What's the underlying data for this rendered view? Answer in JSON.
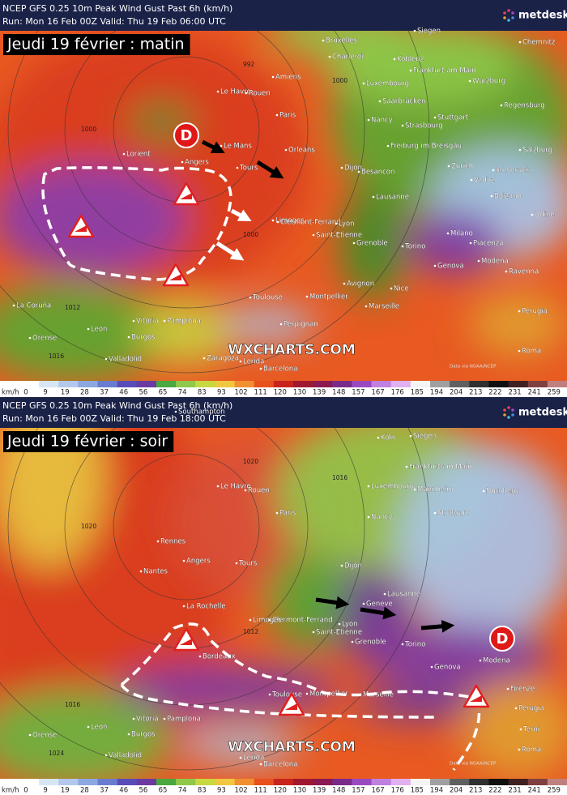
{
  "panels": [
    {
      "header": {
        "line1": "NCEP GFS 0.25 10m Peak Wind Gust Past 6h (km/h)",
        "line2": "Run: Mon 16 Feb 00Z Valid: Thu 19 Feb 06:00 UTC"
      },
      "logo": "metdesk",
      "title": "Jeudi 19 février : matin",
      "watermark": "WXCHARTS.COM",
      "low_label": "D",
      "credit": "Data via NOAA/NCEP",
      "isobars": [
        "1000",
        "1000",
        "1000",
        "1012",
        "1016",
        "992"
      ],
      "cities": [
        "Bruxelles",
        "Charleroi",
        "Siegen",
        "Koblenz",
        "Frankfurt am Main",
        "Würzburg",
        "Chemnitz",
        "Amiens",
        "Luxembourg",
        "Le Havre",
        "Rouen",
        "Saarbrücken",
        "Regensburg",
        "Paris",
        "Nancy",
        "Strasbourg",
        "Stuttgart",
        "Le Mans",
        "Orleans",
        "Freiburg im Breisgau",
        "Salzburg",
        "Angers",
        "Tours",
        "Dijon",
        "Besancon",
        "Zurich",
        "Innsbruck",
        "Lorient",
        "Vaduz",
        "Lausanne",
        "Bolzano",
        "Limoges",
        "Clermont-Ferrand",
        "Lyon",
        "Udine",
        "Saint-Etienne",
        "Grenoble",
        "Milano",
        "Piacenza",
        "Torino",
        "Modena",
        "Ravenna",
        "Genova",
        "Avignon",
        "Nice",
        "Toulouse",
        "Montpellier",
        "Marseille",
        "Perugia",
        "Vitoria",
        "Pamplona",
        "La Coruña",
        "Leon",
        "Burgos",
        "Orense",
        "Perpignan",
        "Valladolid",
        "Zaragoza",
        "Lerida",
        "Barcelona",
        "Roma"
      ]
    },
    {
      "header": {
        "line1": "NCEP GFS 0.25 10m Peak Wind Gust Past 6h (km/h)",
        "line2": "Run: Mon 16 Feb 00Z Valid: Thu 19 Feb 18:00 UTC"
      },
      "logo": "metdesk",
      "title": "Jeudi 19 février : soir",
      "watermark": "WXCHARTS.COM",
      "low_label": "D",
      "credit": "Data via NOAA/NCEP",
      "isobars": [
        "1020",
        "1016",
        "1012",
        "1016",
        "1024",
        "1020"
      ],
      "cities": [
        "Southampton",
        "Köln",
        "Siegen",
        "Frankfurt am Main",
        "Luxembourg",
        "Mannheim",
        "Nurnberg",
        "Le Havre",
        "Rouen",
        "Paris",
        "Nancy",
        "Stuttgart",
        "Rennes",
        "Angers",
        "Tours",
        "Nantes",
        "Dijon",
        "Lausanne",
        "Geneve",
        "La Rochelle",
        "Limoges",
        "Clermont-Ferrand",
        "Lyon",
        "Saint-Etienne",
        "Grenoble",
        "Torino",
        "Bordeaux",
        "Genova",
        "Modena",
        "Firenze",
        "Toulouse",
        "Montpellier",
        "Marseille",
        "Perugia",
        "Terni",
        "Vitoria",
        "Pamplona",
        "Leon",
        "Burgos",
        "Orense",
        "Valladolid",
        "Lerida",
        "Barcelona",
        "Roma"
      ]
    }
  ],
  "legend": {
    "unit": "km/h",
    "values": [
      "0",
      "9",
      "19",
      "28",
      "37",
      "46",
      "56",
      "65",
      "74",
      "83",
      "93",
      "102",
      "111",
      "120",
      "130",
      "139",
      "148",
      "157",
      "167",
      "176",
      "185",
      "194",
      "204",
      "213",
      "222",
      "231",
      "241",
      "259"
    ]
  }
}
